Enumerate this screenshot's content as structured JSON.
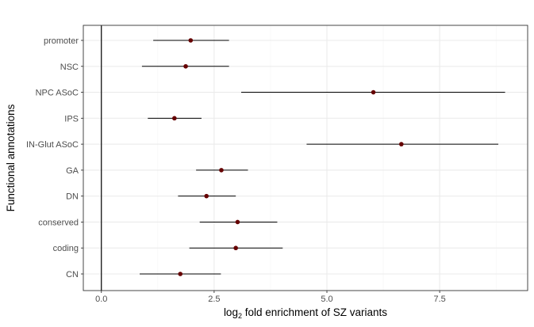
{
  "chart_data": {
    "type": "scatter",
    "subtype": "point-range",
    "xlabel_prefix": "log",
    "xlabel_sub": "2",
    "xlabel_suffix": " fold enrichment of SZ variants",
    "ylabel": "Functional annotations",
    "xlim": [
      -0.4,
      9.45
    ],
    "xticks": [
      0.0,
      2.5,
      5.0,
      7.5
    ],
    "xtick_labels": [
      "0.0",
      "2.5",
      "5.0",
      "7.5"
    ],
    "reference_line_x": 0,
    "grid": true,
    "categories": [
      "promoter",
      "NSC",
      "NPC ASoC",
      "IPS",
      "IN-Glut ASoC",
      "GA",
      "DN",
      "conserved",
      "coding",
      "CN"
    ],
    "estimate": [
      1.98,
      1.87,
      6.03,
      1.62,
      6.65,
      2.66,
      2.33,
      3.02,
      2.98,
      1.75
    ],
    "lower": [
      1.15,
      0.9,
      3.1,
      1.03,
      4.55,
      2.1,
      1.7,
      2.18,
      1.95,
      0.85
    ],
    "upper": [
      2.83,
      2.83,
      8.95,
      2.22,
      8.8,
      3.25,
      2.98,
      3.9,
      4.02,
      2.65
    ],
    "colors": {
      "point": "#650000",
      "errorbar": "#000000",
      "grid_major": "#ebebeb",
      "grid_minor": "#f5f5f5",
      "panel_border": "#333333",
      "reference_line": "#000000"
    }
  }
}
